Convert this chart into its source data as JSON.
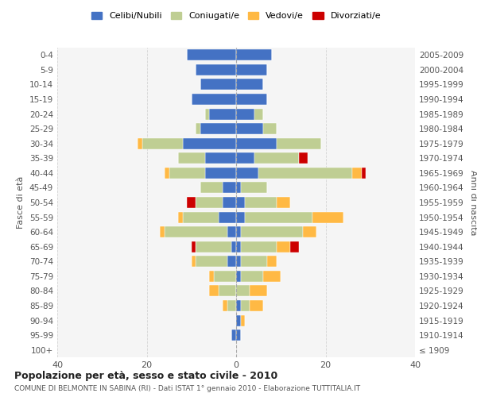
{
  "age_groups": [
    "100+",
    "95-99",
    "90-94",
    "85-89",
    "80-84",
    "75-79",
    "70-74",
    "65-69",
    "60-64",
    "55-59",
    "50-54",
    "45-49",
    "40-44",
    "35-39",
    "30-34",
    "25-29",
    "20-24",
    "15-19",
    "10-14",
    "5-9",
    "0-4"
  ],
  "birth_years": [
    "≤ 1909",
    "1910-1914",
    "1915-1919",
    "1920-1924",
    "1925-1929",
    "1930-1934",
    "1935-1939",
    "1940-1944",
    "1945-1949",
    "1950-1954",
    "1955-1959",
    "1960-1964",
    "1965-1969",
    "1970-1974",
    "1975-1979",
    "1980-1984",
    "1985-1989",
    "1990-1994",
    "1995-1999",
    "2000-2004",
    "2005-2009"
  ],
  "male": {
    "celibi": [
      0,
      1,
      0,
      0,
      0,
      0,
      2,
      1,
      2,
      4,
      3,
      3,
      7,
      7,
      12,
      8,
      6,
      10,
      8,
      9,
      11
    ],
    "coniugati": [
      0,
      0,
      0,
      2,
      4,
      5,
      7,
      8,
      14,
      8,
      6,
      5,
      8,
      6,
      9,
      1,
      1,
      0,
      0,
      0,
      0
    ],
    "vedovi": [
      0,
      0,
      0,
      1,
      2,
      1,
      1,
      0,
      1,
      1,
      0,
      0,
      1,
      0,
      1,
      0,
      0,
      0,
      0,
      0,
      0
    ],
    "divorziati": [
      0,
      0,
      0,
      0,
      0,
      0,
      0,
      1,
      0,
      0,
      2,
      0,
      0,
      0,
      0,
      0,
      0,
      0,
      0,
      0,
      0
    ]
  },
  "female": {
    "nubili": [
      0,
      1,
      1,
      1,
      0,
      1,
      1,
      1,
      1,
      2,
      2,
      1,
      5,
      4,
      9,
      6,
      4,
      7,
      6,
      7,
      8
    ],
    "coniugate": [
      0,
      0,
      0,
      2,
      3,
      5,
      6,
      8,
      14,
      15,
      7,
      6,
      21,
      10,
      10,
      3,
      2,
      0,
      0,
      0,
      0
    ],
    "vedove": [
      0,
      0,
      1,
      3,
      4,
      4,
      2,
      3,
      3,
      7,
      3,
      0,
      2,
      0,
      0,
      0,
      0,
      0,
      0,
      0,
      0
    ],
    "divorziate": [
      0,
      0,
      0,
      0,
      0,
      0,
      0,
      2,
      0,
      0,
      0,
      0,
      1,
      2,
      0,
      0,
      0,
      0,
      0,
      0,
      0
    ]
  },
  "colors": {
    "celibi": "#4472C4",
    "coniugati": "#BFCE93",
    "vedovi": "#FFB944",
    "divorziati": "#CC0000"
  },
  "xlim": 40,
  "title": "Popolazione per età, sesso e stato civile - 2010",
  "subtitle": "COMUNE DI BELMONTE IN SABINA (RI) - Dati ISTAT 1° gennaio 2010 - Elaborazione TUTTITALIA.IT",
  "ylabel_left": "Fasce di età",
  "ylabel_right": "Anni di nascita",
  "bg_color": "#f5f5f5",
  "grid_color": "#cccccc"
}
